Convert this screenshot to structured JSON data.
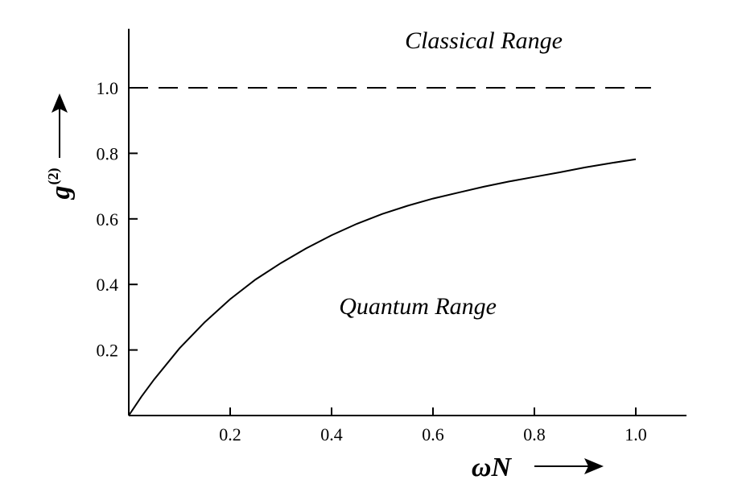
{
  "chart_data": {
    "type": "line",
    "xlabel_symbol": "ωN",
    "ylabel_base": "g",
    "ylabel_superscript": "(2)",
    "xlim": [
      0,
      1.1
    ],
    "ylim": [
      0,
      1.18
    ],
    "x_ticks": [
      0.2,
      0.4,
      0.6,
      0.8,
      1.0
    ],
    "x_tick_labels": [
      "0.2",
      "0.4",
      "0.6",
      "0.8",
      "1.0"
    ],
    "y_ticks": [
      0.2,
      0.4,
      0.6,
      0.8,
      1.0
    ],
    "y_tick_labels": [
      "0.2",
      "0.4",
      "0.6",
      "0.8",
      "1.0"
    ],
    "grid": false,
    "series": [
      {
        "style": "solid",
        "x": [
          0,
          0.025,
          0.05,
          0.1,
          0.15,
          0.2,
          0.25,
          0.3,
          0.35,
          0.4,
          0.45,
          0.5,
          0.55,
          0.6,
          0.65,
          0.7,
          0.75,
          0.8,
          0.85,
          0.9,
          0.95,
          1.0
        ],
        "y": [
          0,
          0.058,
          0.11,
          0.205,
          0.285,
          0.355,
          0.415,
          0.465,
          0.51,
          0.55,
          0.585,
          0.615,
          0.64,
          0.662,
          0.68,
          0.698,
          0.714,
          0.728,
          0.742,
          0.757,
          0.77,
          0.782
        ]
      },
      {
        "style": "dashed",
        "x": [
          0,
          1.03
        ],
        "y": [
          1.0,
          1.0
        ]
      }
    ],
    "annotations": [
      {
        "text": "Classical Range",
        "x": 0.7,
        "y": 1.12
      },
      {
        "text": "Quantum Range",
        "x": 0.57,
        "y": 0.31
      }
    ]
  }
}
